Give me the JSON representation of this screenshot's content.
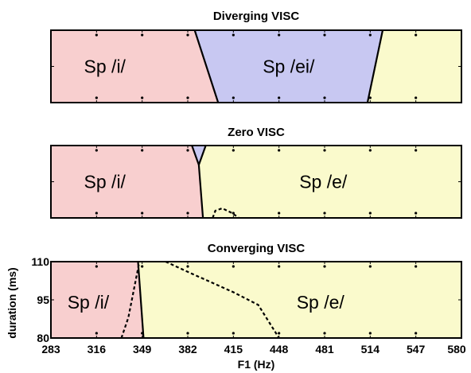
{
  "chart_data": {
    "type": "area",
    "xlabel": "F1 (Hz)",
    "ylabel": "duration (ms)",
    "xlim": [
      283,
      580
    ],
    "ylim": [
      80,
      110
    ],
    "xticks": [
      "283",
      "316",
      "349",
      "382",
      "415",
      "448",
      "481",
      "514",
      "547",
      "580"
    ],
    "yticks": [
      "80",
      "95",
      "110"
    ],
    "colors": {
      "i": "#f8cfcf",
      "ei": "#c8c8f2",
      "e": "#fafacc",
      "boundary": "#000000",
      "frame": "#000000"
    },
    "panels": [
      {
        "title": "Diverging VISC",
        "regions": [
          {
            "label": "Sp /i/",
            "key": "i",
            "polygon": [
              [
                283,
                80
              ],
              [
                283,
                110
              ],
              [
                387,
                110
              ],
              [
                404,
                80
              ]
            ]
          },
          {
            "label": "Sp /ei/",
            "key": "ei",
            "polygon": [
              [
                387,
                110
              ],
              [
                523,
                110
              ],
              [
                512,
                80
              ],
              [
                404,
                80
              ]
            ]
          },
          {
            "label": "Sp /e/",
            "key": "e",
            "polygon": [
              [
                523,
                110
              ],
              [
                580,
                110
              ],
              [
                580,
                80
              ],
              [
                512,
                80
              ]
            ]
          }
        ],
        "boundaries": [
          [
            [
              387,
              110
            ],
            [
              404,
              80
            ]
          ],
          [
            [
              523,
              110
            ],
            [
              512,
              80
            ]
          ]
        ],
        "dashed": [],
        "label_positions": [
          {
            "text": "Sp /i/",
            "x": 322,
            "y": 95
          },
          {
            "text": "Sp /ei/",
            "x": 455,
            "y": 95
          }
        ]
      },
      {
        "title": "Zero VISC",
        "regions": [
          {
            "label": "Sp /i/",
            "key": "i",
            "polygon": [
              [
                283,
                80
              ],
              [
                283,
                110
              ],
              [
                385,
                110
              ],
              [
                390,
                102
              ],
              [
                393,
                80
              ]
            ]
          },
          {
            "label": "Sp /ei/",
            "key": "ei",
            "polygon": [
              [
                385,
                110
              ],
              [
                395,
                110
              ],
              [
                390,
                102
              ]
            ]
          },
          {
            "label": "Sp /e/",
            "key": "e",
            "polygon": [
              [
                395,
                110
              ],
              [
                580,
                110
              ],
              [
                580,
                80
              ],
              [
                393,
                80
              ],
              [
                390,
                102
              ]
            ]
          }
        ],
        "boundaries": [
          [
            [
              385,
              110
            ],
            [
              390,
              102
            ],
            [
              393,
              80
            ]
          ],
          [
            [
              395,
              110
            ],
            [
              390,
              102
            ]
          ]
        ],
        "dashed": [
          [
            [
              400,
              80
            ],
            [
              402,
              83
            ],
            [
              407,
              84
            ],
            [
              414,
              82
            ],
            [
              419,
              80
            ]
          ]
        ],
        "label_positions": [
          {
            "text": "Sp /i/",
            "x": 322,
            "y": 95
          },
          {
            "text": "Sp /e/",
            "x": 480,
            "y": 95
          }
        ]
      },
      {
        "title": "Converging VISC",
        "regions": [
          {
            "label": "Sp /i/",
            "key": "i",
            "polygon": [
              [
                283,
                80
              ],
              [
                283,
                110
              ],
              [
                346,
                110
              ],
              [
                350,
                80
              ]
            ]
          },
          {
            "label": "Sp /e/",
            "key": "e",
            "polygon": [
              [
                346,
                110
              ],
              [
                580,
                110
              ],
              [
                580,
                80
              ],
              [
                350,
                80
              ]
            ]
          }
        ],
        "boundaries": [
          [
            [
              346,
              110
            ],
            [
              350,
              80
            ]
          ]
        ],
        "dashed": [
          [
            [
              334,
              80
            ],
            [
              339,
              88
            ],
            [
              347,
              110
            ]
          ],
          [
            [
              366,
              110
            ],
            [
              382,
              106
            ],
            [
              415,
              98
            ],
            [
              433,
              93
            ],
            [
              448,
              80
            ]
          ]
        ],
        "label_positions": [
          {
            "text": "Sp /i/",
            "x": 310,
            "y": 94
          },
          {
            "text": "Sp /e/",
            "x": 478,
            "y": 94
          }
        ]
      }
    ]
  }
}
